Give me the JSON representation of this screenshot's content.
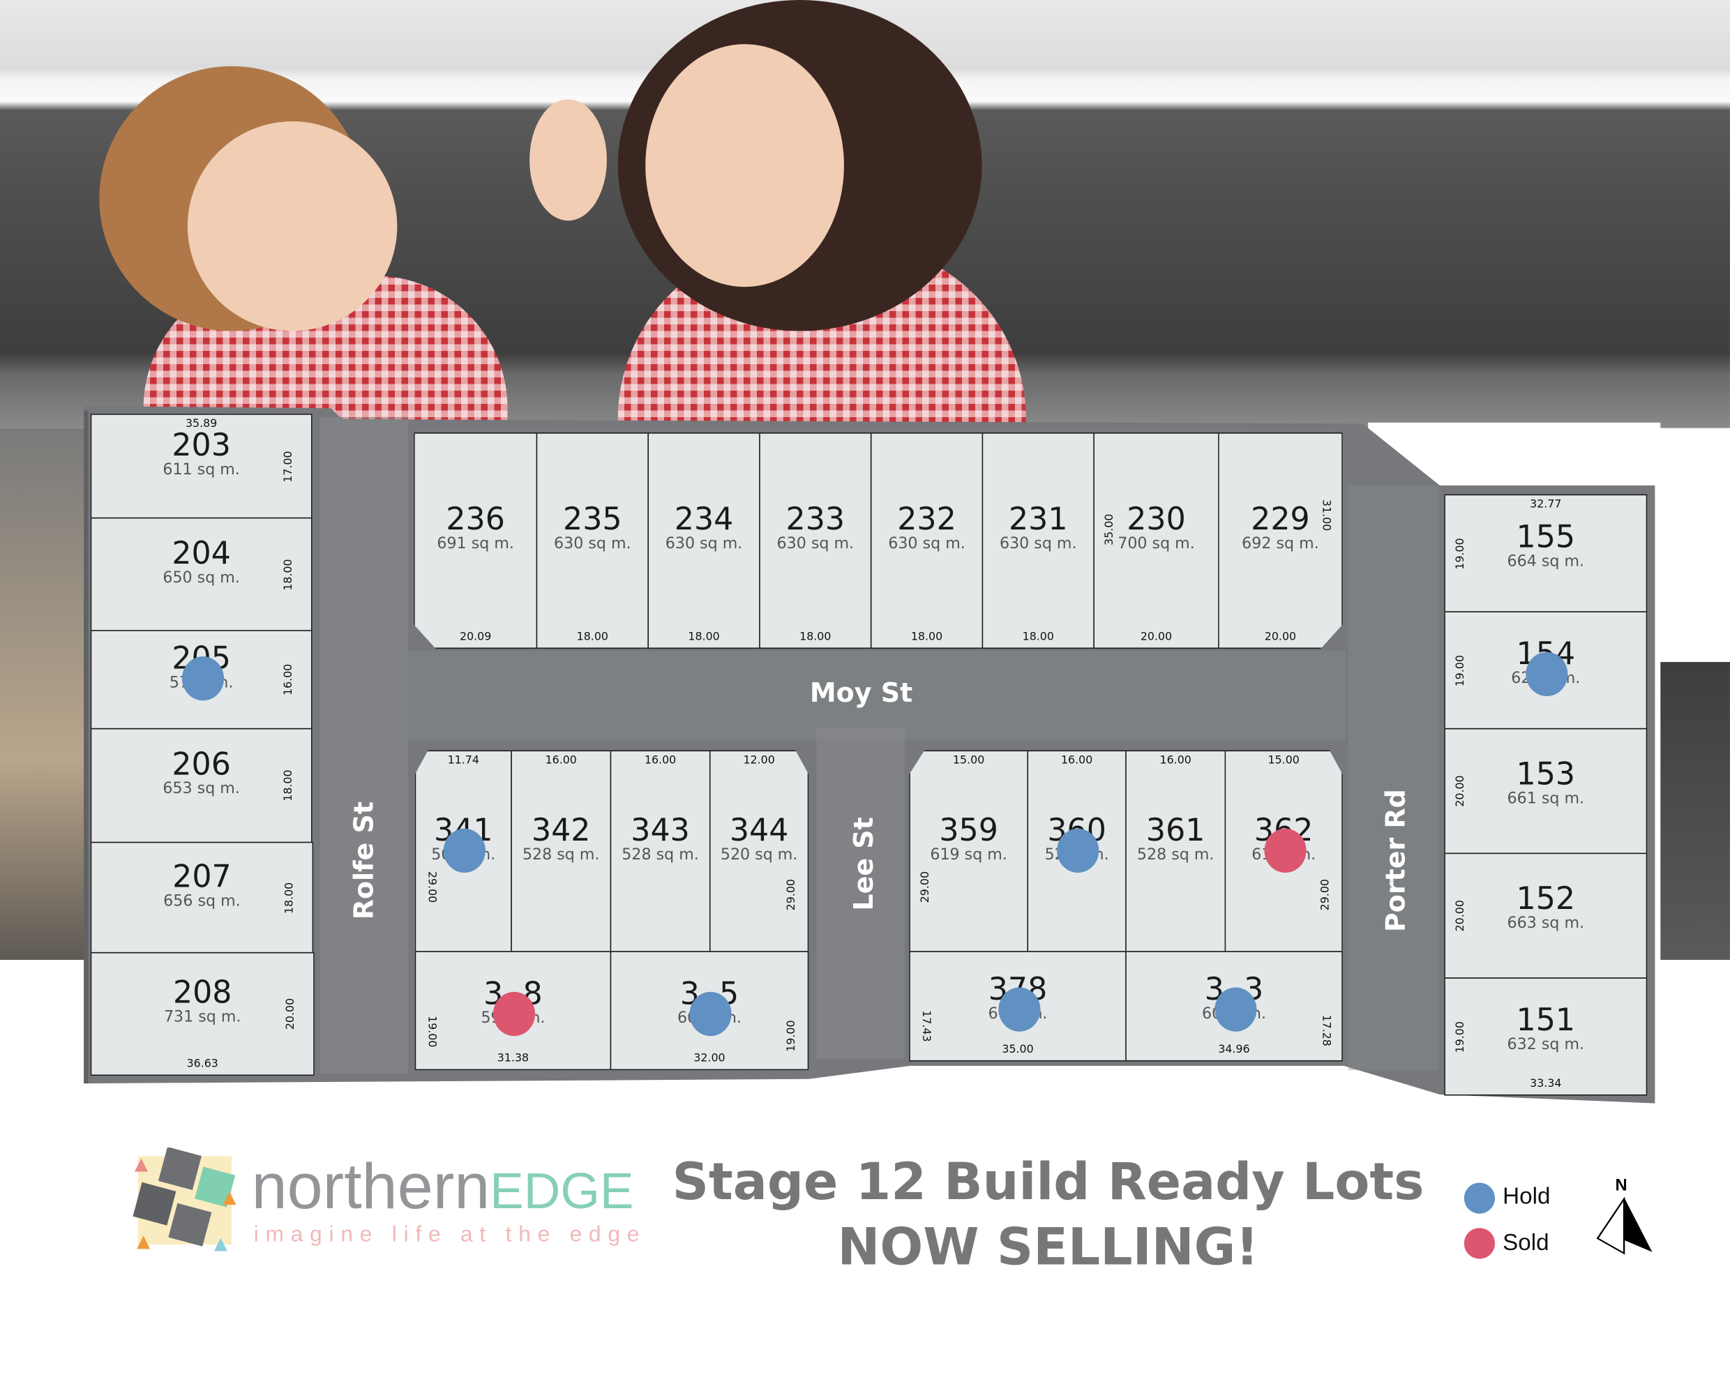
{
  "colors": {
    "hold": "#6190c2",
    "sold": "#dd566f",
    "road": "#76787b",
    "lot_fill": "#e4e8e9",
    "brand_grey": "#939598",
    "brand_green": "#86cfb8",
    "brand_pink": "#f0b8b8"
  },
  "streets": {
    "moy": "Moy St",
    "rolfe": "Rolfe St",
    "lee": "Lee St",
    "porter": "Porter Rd"
  },
  "lots": [
    {
      "id": "203",
      "num": "203",
      "area": "611 sq m.",
      "dims": {
        "top": "35.89",
        "right": "17.00"
      }
    },
    {
      "id": "204",
      "num": "204",
      "area": "650 sq m.",
      "dims": {
        "right": "18.00"
      }
    },
    {
      "id": "205",
      "num": "205",
      "area": "57      n.",
      "status": "hold",
      "dims": {
        "right": "16.00"
      }
    },
    {
      "id": "206",
      "num": "206",
      "area": "653 sq m.",
      "dims": {
        "right": "18.00"
      }
    },
    {
      "id": "207",
      "num": "207",
      "area": "656 sq m.",
      "dims": {
        "right": "18.00"
      }
    },
    {
      "id": "208",
      "num": "208",
      "area": "731 sq m.",
      "dims": {
        "right": "20.00",
        "bottom": "36.63"
      }
    },
    {
      "id": "236",
      "num": "236",
      "area": "691 sq m.",
      "dims": {
        "bottom": "20.09"
      }
    },
    {
      "id": "235",
      "num": "235",
      "area": "630 sq m.",
      "dims": {
        "bottom": "18.00"
      }
    },
    {
      "id": "234",
      "num": "234",
      "area": "630 sq m.",
      "dims": {
        "bottom": "18.00"
      }
    },
    {
      "id": "233",
      "num": "233",
      "area": "630 sq m.",
      "dims": {
        "bottom": "18.00"
      }
    },
    {
      "id": "232",
      "num": "232",
      "area": "630 sq m.",
      "dims": {
        "bottom": "18.00"
      }
    },
    {
      "id": "231",
      "num": "231",
      "area": "630 sq m.",
      "dims": {
        "bottom": "18.00"
      }
    },
    {
      "id": "230",
      "num": "230",
      "area": "700 sq m.",
      "dims": {
        "left": "35.00",
        "bottom": "20.00"
      }
    },
    {
      "id": "229",
      "num": "229",
      "area": "692 sq m.",
      "dims": {
        "right": "31.00",
        "bottom": "20.00"
      }
    },
    {
      "id": "341",
      "num": "341",
      "area": "50     m.",
      "status": "hold",
      "dims": {
        "top": "11.74",
        "left": "29.00"
      }
    },
    {
      "id": "342",
      "num": "342",
      "area": "528 sq m.",
      "dims": {
        "top": "16.00"
      }
    },
    {
      "id": "343",
      "num": "343",
      "area": "528 sq m.",
      "dims": {
        "top": "16.00"
      }
    },
    {
      "id": "344",
      "num": "344",
      "area": "520 sq m.",
      "dims": {
        "top": "12.00",
        "right": "29.00"
      }
    },
    {
      "id": "3x8",
      "num": "3  8",
      "area": "59     m.",
      "status": "sold",
      "dims": {
        "left": "19.00",
        "bottom": "31.38"
      }
    },
    {
      "id": "3x5",
      "num": "3  5",
      "area": "60     m.",
      "status": "hold",
      "dims": {
        "right": "19.00",
        "bottom": "32.00"
      }
    },
    {
      "id": "359",
      "num": "359",
      "area": "619 sq m.",
      "dims": {
        "top": "15.00",
        "left": "29.00"
      }
    },
    {
      "id": "360",
      "num": "360",
      "area": "52     m.",
      "status": "hold",
      "dims": {
        "top": "16.00"
      }
    },
    {
      "id": "361",
      "num": "361",
      "area": "528 sq m.",
      "dims": {
        "top": "16.00"
      }
    },
    {
      "id": "362",
      "num": "362",
      "area": "61     m.",
      "status": "sold",
      "dims": {
        "top": "15.00",
        "right": "29.00"
      }
    },
    {
      "id": "378",
      "num": "378",
      "area": "6      m.",
      "status": "hold",
      "dims": {
        "left": "17.43",
        "bottom": "35.00"
      }
    },
    {
      "id": "3x3",
      "num": "3  3",
      "area": "60     m.",
      "status": "hold",
      "dims": {
        "right": "17.28",
        "bottom": "34.96"
      }
    },
    {
      "id": "155",
      "num": "155",
      "area": "664 sq m.",
      "dims": {
        "top": "32.77",
        "left": "19.00"
      }
    },
    {
      "id": "154",
      "num": "154",
      "area": "62      m.",
      "status": "hold",
      "dims": {
        "left": "19.00"
      }
    },
    {
      "id": "153",
      "num": "153",
      "area": "661 sq m.",
      "dims": {
        "left": "20.00"
      }
    },
    {
      "id": "152",
      "num": "152",
      "area": "663 sq m.",
      "dims": {
        "left": "20.00"
      }
    },
    {
      "id": "151",
      "num": "151",
      "area": "632 sq m.",
      "dims": {
        "left": "19.00",
        "bottom": "33.34"
      }
    }
  ],
  "brand": {
    "name_part1": "northern",
    "name_part2": "EDGE",
    "tagline": "imagine life at the edge"
  },
  "headline": {
    "line1": "Stage 12 Build Ready Lots",
    "line2": "NOW SELLING!"
  },
  "legend": [
    {
      "label": "Hold",
      "status": "hold"
    },
    {
      "label": "Sold",
      "status": "sold"
    }
  ],
  "north_label": "N"
}
